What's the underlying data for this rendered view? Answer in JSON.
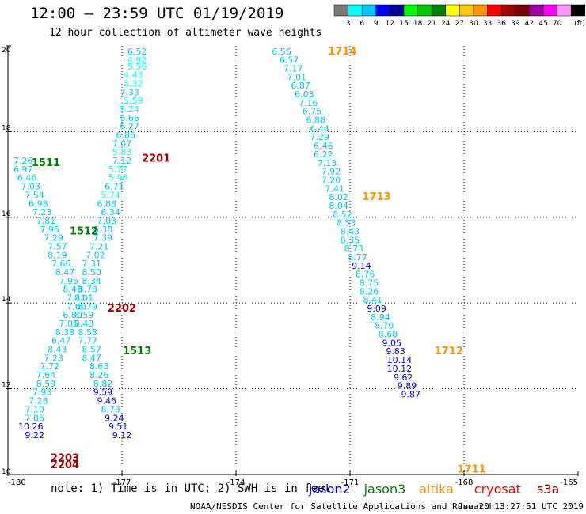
{
  "header": {
    "title": "12:00 – 23:59 UTC 01/19/2019",
    "subtitle": "12 hour collection of altimeter wave heights"
  },
  "legend": {
    "colors": [
      "#7a7a7a",
      "#00ffff",
      "#00c8ff",
      "#0000ff",
      "#0000a0",
      "#00ff00",
      "#00c800",
      "#008000",
      "#ffff00",
      "#ffc800",
      "#ff9600",
      "#ff0000",
      "#a00000",
      "#780000",
      "#a000a0",
      "#ff00ff",
      "#ff96ff",
      "#000000"
    ],
    "labels": [
      "3",
      "6",
      "9",
      "12",
      "15",
      "18",
      "21",
      "24",
      "27",
      "30",
      "33",
      "36",
      "39",
      "42",
      "45",
      "70"
    ],
    "unit": "(ft)"
  },
  "footer": {
    "note": "note:  1) Time is in UTC;  2) SWH is in feet",
    "missions": [
      {
        "name": "jason2",
        "color": "#0000ff"
      },
      {
        "name": "jason3",
        "color": "#008000"
      },
      {
        "name": "altika",
        "color": "#ff9600"
      },
      {
        "name": "cryosat",
        "color": "#ff0000"
      },
      {
        "name": "s3a",
        "color": "#a00000"
      }
    ],
    "credit": "NOAA/NESDIS Center for Satellite Applications and Research",
    "timestamp": "Jan 20 13:27:51 UTC 2019"
  },
  "chart_data": {
    "type": "scatter",
    "xlim": [
      -180,
      -165
    ],
    "ylim": [
      10,
      20
    ],
    "x_ticks": [
      "-180",
      "-177",
      "-174",
      "-171",
      "-168",
      "-165"
    ],
    "y_ticks": [
      "10",
      "12",
      "14",
      "16",
      "18",
      "20"
    ],
    "grid": true,
    "color_scale": "legend colors, wave height in feet",
    "time_labels": [
      {
        "text": "1714",
        "lon": -171.2,
        "lat": 19.8,
        "mission": "altika"
      },
      {
        "text": "1713",
        "lon": -170.3,
        "lat": 16.4,
        "mission": "altika"
      },
      {
        "text": "1712",
        "lon": -168.4,
        "lat": 12.8,
        "mission": "altika"
      },
      {
        "text": "1711",
        "lon": -167.8,
        "lat": 10.05,
        "mission": "altika"
      },
      {
        "text": "1511",
        "lon": -179.0,
        "lat": 17.2,
        "mission": "jason3"
      },
      {
        "text": "1512",
        "lon": -178.0,
        "lat": 15.6,
        "mission": "jason3"
      },
      {
        "text": "1513",
        "lon": -176.6,
        "lat": 12.8,
        "mission": "jason3"
      },
      {
        "text": "2201",
        "lon": -176.1,
        "lat": 17.3,
        "mission": "s3a"
      },
      {
        "text": "2202",
        "lon": -177.0,
        "lat": 13.8,
        "mission": "s3a"
      },
      {
        "text": "2203",
        "lon": -178.5,
        "lat": 10.3,
        "mission": "s3a"
      },
      {
        "text": "2204",
        "lon": -178.5,
        "lat": 10.15,
        "mission": "s3a"
      }
    ],
    "tracks": [
      {
        "mission": "s3a",
        "points": [
          [
            -176.6,
            19.8,
            "6.52"
          ],
          [
            -176.6,
            19.6,
            "4.92"
          ],
          [
            -176.6,
            19.45,
            "5.56"
          ],
          [
            -176.7,
            19.25,
            "4.43"
          ],
          [
            -176.7,
            19.05,
            "5.32"
          ],
          [
            -176.8,
            18.85,
            "7.33"
          ],
          [
            -176.7,
            18.65,
            "5.59"
          ],
          [
            -176.8,
            18.45,
            "5.24"
          ],
          [
            -176.8,
            18.25,
            "6.66"
          ],
          [
            -176.8,
            18.05,
            "6.27"
          ],
          [
            -176.9,
            17.85,
            "6.86"
          ],
          [
            -177.0,
            17.65,
            "7.07"
          ],
          [
            -177.0,
            17.45,
            "5.83"
          ],
          [
            -177.0,
            17.25,
            "7.12"
          ],
          [
            -177.1,
            17.05,
            "5.77"
          ],
          [
            -177.1,
            16.85,
            "5.96"
          ],
          [
            -177.2,
            16.65,
            "6.71"
          ],
          [
            -177.3,
            16.45,
            "5.74"
          ],
          [
            -177.4,
            16.25,
            "6.88"
          ],
          [
            -177.3,
            16.05,
            "6.34"
          ],
          [
            -177.4,
            15.85,
            "7.03"
          ],
          [
            -177.5,
            15.65,
            "6.38"
          ],
          [
            -177.5,
            15.45,
            "7.39"
          ],
          [
            -177.6,
            15.25,
            "7.21"
          ],
          [
            -177.7,
            15.05,
            "7.02"
          ],
          [
            -177.8,
            14.85,
            "7.31"
          ],
          [
            -177.8,
            14.65,
            "8.50"
          ],
          [
            -177.8,
            14.45,
            "8.34"
          ],
          [
            -177.9,
            14.25,
            "8.78"
          ],
          [
            -178.0,
            14.05,
            "8.01"
          ],
          [
            -177.9,
            13.85,
            "8.79"
          ],
          [
            -178.0,
            13.65,
            "8.59"
          ],
          [
            -178.0,
            13.45,
            "8.43"
          ],
          [
            -177.9,
            13.25,
            "8.58"
          ],
          [
            -177.9,
            13.05,
            "7.77"
          ],
          [
            -177.8,
            12.85,
            "8.57"
          ],
          [
            -177.8,
            12.65,
            "8.47"
          ],
          [
            -177.6,
            12.45,
            "8.63"
          ],
          [
            -177.6,
            12.25,
            "8.26"
          ],
          [
            -177.5,
            12.05,
            "8.82"
          ],
          [
            -177.5,
            11.85,
            "9.59"
          ],
          [
            -177.4,
            11.65,
            "9.46"
          ],
          [
            -177.3,
            11.45,
            "8.73"
          ],
          [
            -177.2,
            11.25,
            "9.24"
          ],
          [
            -177.1,
            11.05,
            "9.51"
          ],
          [
            -177.0,
            10.85,
            "9.12"
          ]
        ]
      },
      {
        "mission": "jason3",
        "points": [
          [
            -179.6,
            17.25,
            "7.26"
          ],
          [
            -179.6,
            17.05,
            "6.97"
          ],
          [
            -179.5,
            16.85,
            "6.46"
          ],
          [
            -179.4,
            16.65,
            "7.03"
          ],
          [
            -179.3,
            16.45,
            "7.54"
          ],
          [
            -179.2,
            16.25,
            "6.98"
          ],
          [
            -179.1,
            16.05,
            "7.23"
          ],
          [
            -179.0,
            15.85,
            "7.81"
          ],
          [
            -178.9,
            15.65,
            "7.95"
          ],
          [
            -178.8,
            15.45,
            "7.29"
          ],
          [
            -178.7,
            15.25,
            "7.57"
          ],
          [
            -178.7,
            15.05,
            "8.19"
          ],
          [
            -178.6,
            14.85,
            "7.66"
          ],
          [
            -178.5,
            14.65,
            "8.47"
          ],
          [
            -178.4,
            14.45,
            "7.95"
          ],
          [
            -178.3,
            14.25,
            "8.43"
          ],
          [
            -178.2,
            14.05,
            "7.41"
          ],
          [
            -178.2,
            13.85,
            "7.60"
          ],
          [
            -178.3,
            13.65,
            "6.80"
          ],
          [
            -178.4,
            13.45,
            "7.05"
          ],
          [
            -178.5,
            13.25,
            "8.38"
          ],
          [
            -178.6,
            13.05,
            "6.47"
          ],
          [
            -178.7,
            12.85,
            "8.43"
          ],
          [
            -178.8,
            12.65,
            "7.23"
          ],
          [
            -178.9,
            12.45,
            "7.72"
          ],
          [
            -179.0,
            12.25,
            "7.64"
          ],
          [
            -179.0,
            12.05,
            "8.59"
          ],
          [
            -179.1,
            11.85,
            "7.93"
          ],
          [
            -179.2,
            11.65,
            "7.28"
          ],
          [
            -179.3,
            11.45,
            "7.10"
          ],
          [
            -179.3,
            11.25,
            "7.86"
          ],
          [
            -179.4,
            11.05,
            "10.26"
          ],
          [
            -179.3,
            10.85,
            "9.22"
          ]
        ]
      },
      {
        "mission": "altika",
        "points": [
          [
            -172.8,
            19.8,
            "6.56"
          ],
          [
            -172.6,
            19.6,
            "6.57"
          ],
          [
            -172.5,
            19.4,
            "7.17"
          ],
          [
            -172.4,
            19.2,
            "7.01"
          ],
          [
            -172.3,
            19.0,
            "6.87"
          ],
          [
            -172.2,
            18.8,
            "6.03"
          ],
          [
            -172.1,
            18.6,
            "7.16"
          ],
          [
            -172.0,
            18.4,
            "6.75"
          ],
          [
            -171.9,
            18.2,
            "6.88"
          ],
          [
            -171.8,
            18.0,
            "6.44"
          ],
          [
            -171.8,
            17.8,
            "7.29"
          ],
          [
            -171.7,
            17.6,
            "6.46"
          ],
          [
            -171.7,
            17.4,
            "6.22"
          ],
          [
            -171.6,
            17.2,
            "7.13"
          ],
          [
            -171.5,
            17.0,
            "7.92"
          ],
          [
            -171.5,
            16.8,
            "7.20"
          ],
          [
            -171.4,
            16.6,
            "7.41"
          ],
          [
            -171.3,
            16.4,
            "8.02"
          ],
          [
            -171.3,
            16.2,
            "8.04"
          ],
          [
            -171.2,
            16.0,
            "8.52"
          ],
          [
            -171.1,
            15.8,
            "8.53"
          ],
          [
            -171.0,
            15.6,
            "8.43"
          ],
          [
            -171.0,
            15.4,
            "8.35"
          ],
          [
            -170.9,
            15.2,
            "8.73"
          ],
          [
            -170.8,
            15.0,
            "8.77"
          ],
          [
            -170.7,
            14.8,
            "9.14"
          ],
          [
            -170.6,
            14.6,
            "8.76"
          ],
          [
            -170.5,
            14.4,
            "8.75"
          ],
          [
            -170.5,
            14.2,
            "8.26"
          ],
          [
            -170.4,
            14.0,
            "8.41"
          ],
          [
            -170.3,
            13.8,
            "9.09"
          ],
          [
            -170.2,
            13.6,
            "8.94"
          ],
          [
            -170.1,
            13.4,
            "8.70"
          ],
          [
            -170.0,
            13.2,
            "8.68"
          ],
          [
            -169.9,
            13.0,
            "9.05"
          ],
          [
            -169.8,
            12.8,
            "9.83"
          ],
          [
            -169.7,
            12.6,
            "10.14"
          ],
          [
            -169.7,
            12.4,
            "10.12"
          ],
          [
            -169.6,
            12.2,
            "9.62"
          ],
          [
            -169.5,
            12.0,
            "9.89"
          ],
          [
            -169.4,
            11.8,
            "9.87"
          ]
        ]
      }
    ]
  }
}
